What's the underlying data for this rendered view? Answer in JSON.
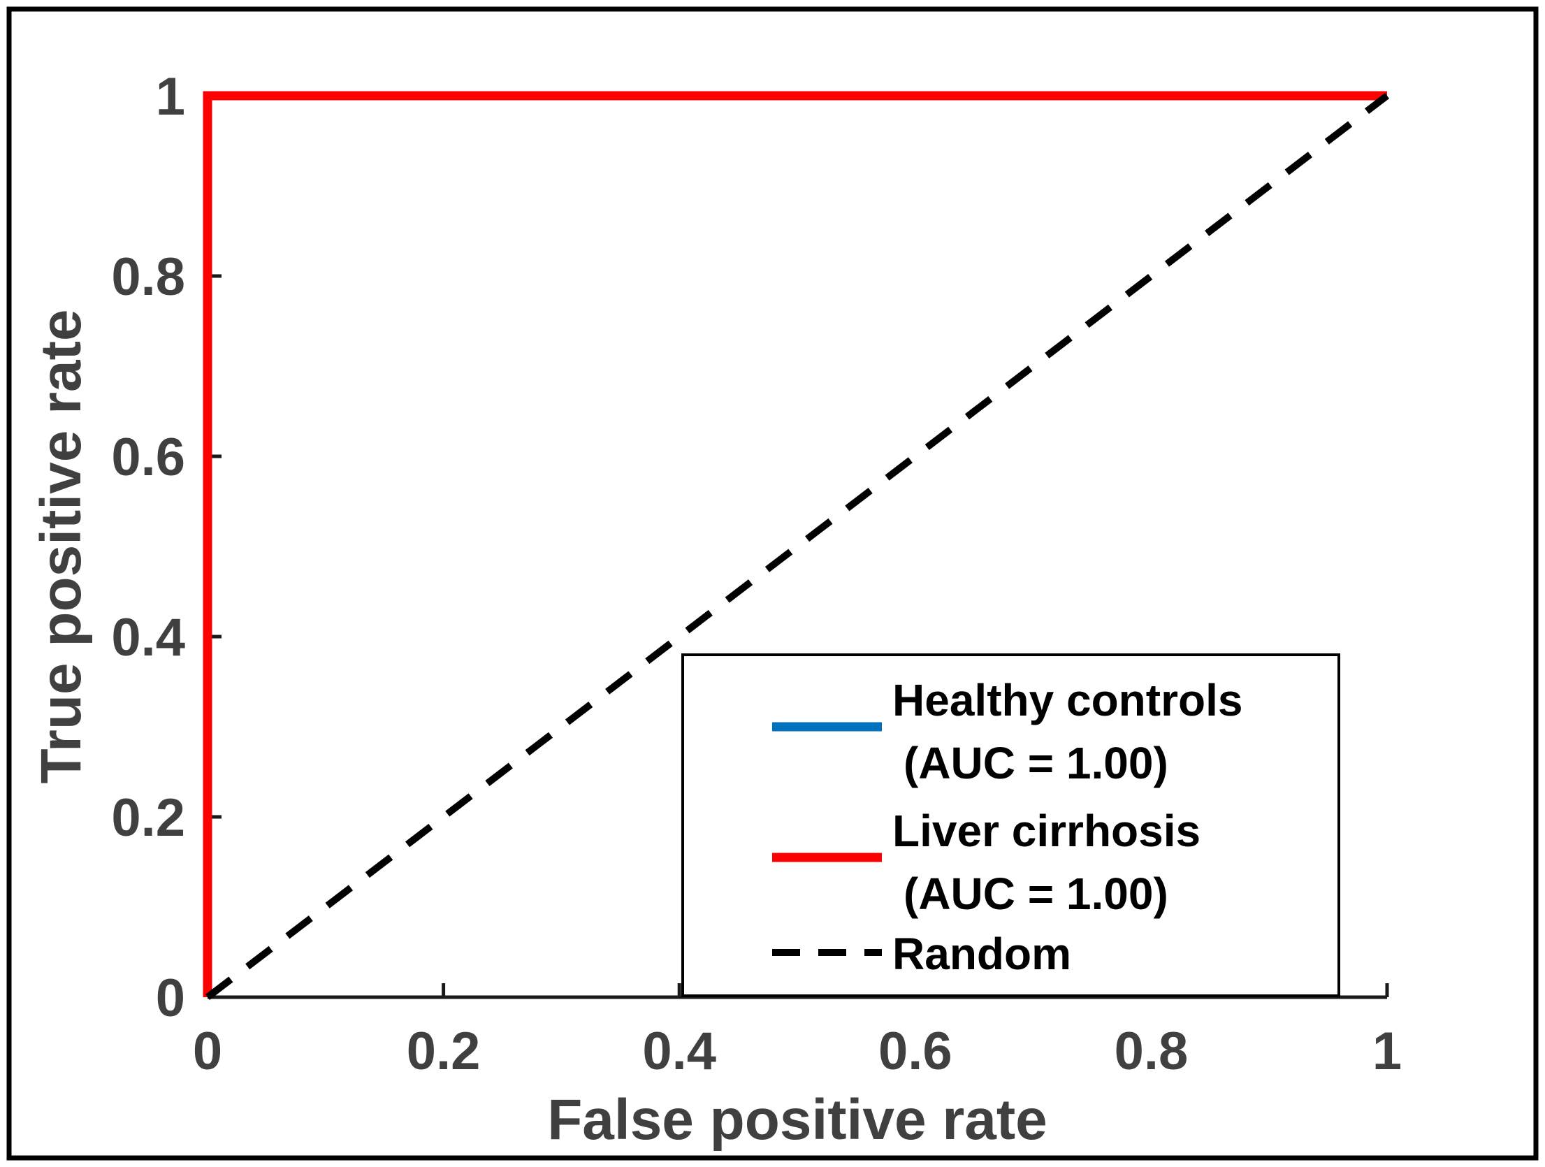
{
  "figure": {
    "background": "#ffffff",
    "border_color": "#000000"
  },
  "chart_data": {
    "type": "line",
    "title": "",
    "xlabel": "False positive rate",
    "ylabel": "True positive rate",
    "xlim": [
      0,
      1
    ],
    "ylim": [
      0,
      1
    ],
    "grid": false,
    "xticks": {
      "values": [
        0,
        0.2,
        0.4,
        0.6,
        0.8,
        1
      ],
      "labels": [
        "0",
        "0.2",
        "0.4",
        "0.6",
        "0.8",
        "1"
      ]
    },
    "yticks": {
      "values": [
        0,
        0.2,
        0.4,
        0.6,
        0.8,
        1
      ],
      "labels": [
        "0",
        "0.2",
        "0.4",
        "0.6",
        "0.8",
        "1"
      ]
    },
    "axis_text_color": "#404040",
    "axis_line_color": "#1a1a1a",
    "series": [
      {
        "name": "Healthy controls (AUC = 1.00)",
        "color": "#0072BD",
        "style": "solid",
        "points": [
          [
            0,
            0
          ],
          [
            0,
            1
          ],
          [
            1,
            1
          ]
        ]
      },
      {
        "name": "Liver cirrhosis (AUC = 1.00)",
        "color": "#FF0000",
        "style": "solid",
        "points": [
          [
            0,
            0
          ],
          [
            0,
            1
          ],
          [
            1,
            1
          ]
        ]
      },
      {
        "name": "Random",
        "color": "#000000",
        "style": "dashed",
        "points": [
          [
            0,
            0
          ],
          [
            1,
            1
          ]
        ]
      }
    ],
    "legend": {
      "position": "lower right",
      "border_color": "#000000",
      "background": "#ffffff",
      "text_color": "#000000",
      "entries": [
        {
          "swatch": "solid",
          "color": "#0072BD",
          "lines": [
            "Healthy controls",
            "(AUC = 1.00)"
          ]
        },
        {
          "swatch": "solid",
          "color": "#FF0000",
          "lines": [
            "Liver cirrhosis",
            "(AUC = 1.00)"
          ]
        },
        {
          "swatch": "dashed",
          "color": "#000000",
          "lines": [
            "Random"
          ]
        }
      ]
    }
  }
}
